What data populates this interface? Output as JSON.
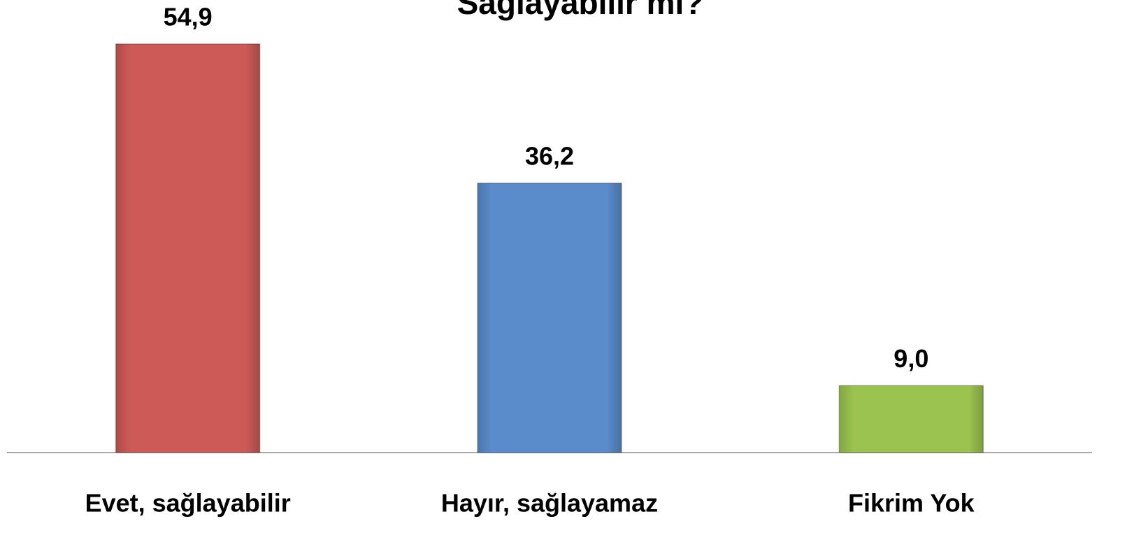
{
  "chart_data": {
    "type": "bar",
    "title": "Sağlayabilir mi?",
    "categories": [
      "Evet, sağlayabilir",
      "Hayır, sağlayamaz",
      "Fikrim Yok"
    ],
    "values": [
      54.9,
      36.2,
      9.0
    ],
    "value_labels": [
      "54,9",
      "36,2",
      "9,0"
    ],
    "colors": [
      "#cd5a57",
      "#5a8bcb",
      "#9bc34f"
    ],
    "ylim": [
      0,
      60
    ]
  }
}
